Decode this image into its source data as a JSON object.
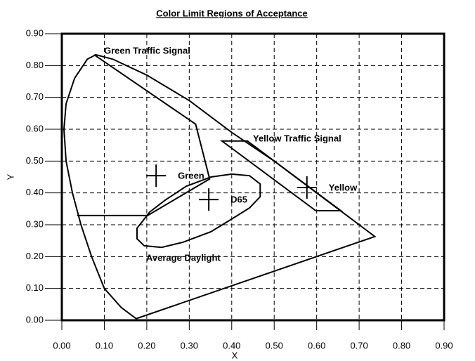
{
  "chart_data": {
    "type": "line",
    "title": "Color Limit Regions of Acceptance",
    "xlabel": "X",
    "ylabel": "Y",
    "xlim": [
      0,
      0.9
    ],
    "ylim": [
      0,
      0.9
    ],
    "xticks": [
      {
        "value": 0,
        "label": "0.00"
      },
      {
        "value": 0.1,
        "label": "0.10"
      },
      {
        "value": 0.2,
        "label": "0.20"
      },
      {
        "value": 0.3,
        "label": "0.30"
      },
      {
        "value": 0.4,
        "label": "0.40"
      },
      {
        "value": 0.5,
        "label": "0.50"
      },
      {
        "value": 0.6,
        "label": "0.60"
      },
      {
        "value": 0.7,
        "label": "0.70"
      },
      {
        "value": 0.8,
        "label": "0.80"
      },
      {
        "value": 0.9,
        "label": "0.90"
      }
    ],
    "yticks": [
      {
        "value": 0,
        "label": "0.00"
      },
      {
        "value": 0.1,
        "label": "0.10"
      },
      {
        "value": 0.2,
        "label": "0.20"
      },
      {
        "value": 0.3,
        "label": "0.30"
      },
      {
        "value": 0.4,
        "label": "0.40"
      },
      {
        "value": 0.5,
        "label": "0.50"
      },
      {
        "value": 0.6,
        "label": "0.60"
      },
      {
        "value": 0.7,
        "label": "0.70"
      },
      {
        "value": 0.8,
        "label": "0.80"
      },
      {
        "value": 0.9,
        "label": "0.90"
      }
    ],
    "grid": true,
    "series": [
      {
        "color": "#000000",
        "closed": true,
        "x": [
          0.175,
          0.14,
          0.1,
          0.07,
          0.045,
          0.025,
          0.01,
          0.005,
          0.01,
          0.03,
          0.06,
          0.08,
          0.12,
          0.2,
          0.3,
          0.4,
          0.5,
          0.6,
          0.7,
          0.737
        ],
        "y": [
          0.005,
          0.04,
          0.1,
          0.2,
          0.3,
          0.4,
          0.5,
          0.6,
          0.68,
          0.76,
          0.82,
          0.834,
          0.82,
          0.77,
          0.69,
          0.59,
          0.5,
          0.4,
          0.3,
          0.263
        ]
      },
      {
        "color": "#000000",
        "closed": false,
        "x": [
          0.036,
          0.202,
          0.348,
          0.315,
          0.076
        ],
        "y": [
          0.329,
          0.329,
          0.444,
          0.616,
          0.834
        ]
      },
      {
        "color": "#000000",
        "closed": true,
        "x": [
          0.377,
          0.437,
          0.657,
          0.598
        ],
        "y": [
          0.563,
          0.563,
          0.344,
          0.344
        ]
      },
      {
        "color": "#000000",
        "closed": true,
        "x": [
          0.177,
          0.19,
          0.207,
          0.243,
          0.293,
          0.351,
          0.4,
          0.442,
          0.467,
          0.467,
          0.442,
          0.4,
          0.351,
          0.285,
          0.235,
          0.194,
          0.177
        ],
        "y": [
          0.289,
          0.311,
          0.34,
          0.377,
          0.421,
          0.45,
          0.459,
          0.454,
          0.428,
          0.388,
          0.353,
          0.318,
          0.278,
          0.245,
          0.229,
          0.234,
          0.256
        ]
      }
    ],
    "points": {
      "labels": [
        "Green",
        "D65",
        "Yellow"
      ],
      "x": [
        0.222,
        0.346,
        0.577
      ],
      "y": [
        0.454,
        0.379,
        0.417
      ]
    },
    "annotations": [
      "Green Traffic Signal",
      "Yellow Traffic Signal",
      "Average Daylight"
    ]
  }
}
